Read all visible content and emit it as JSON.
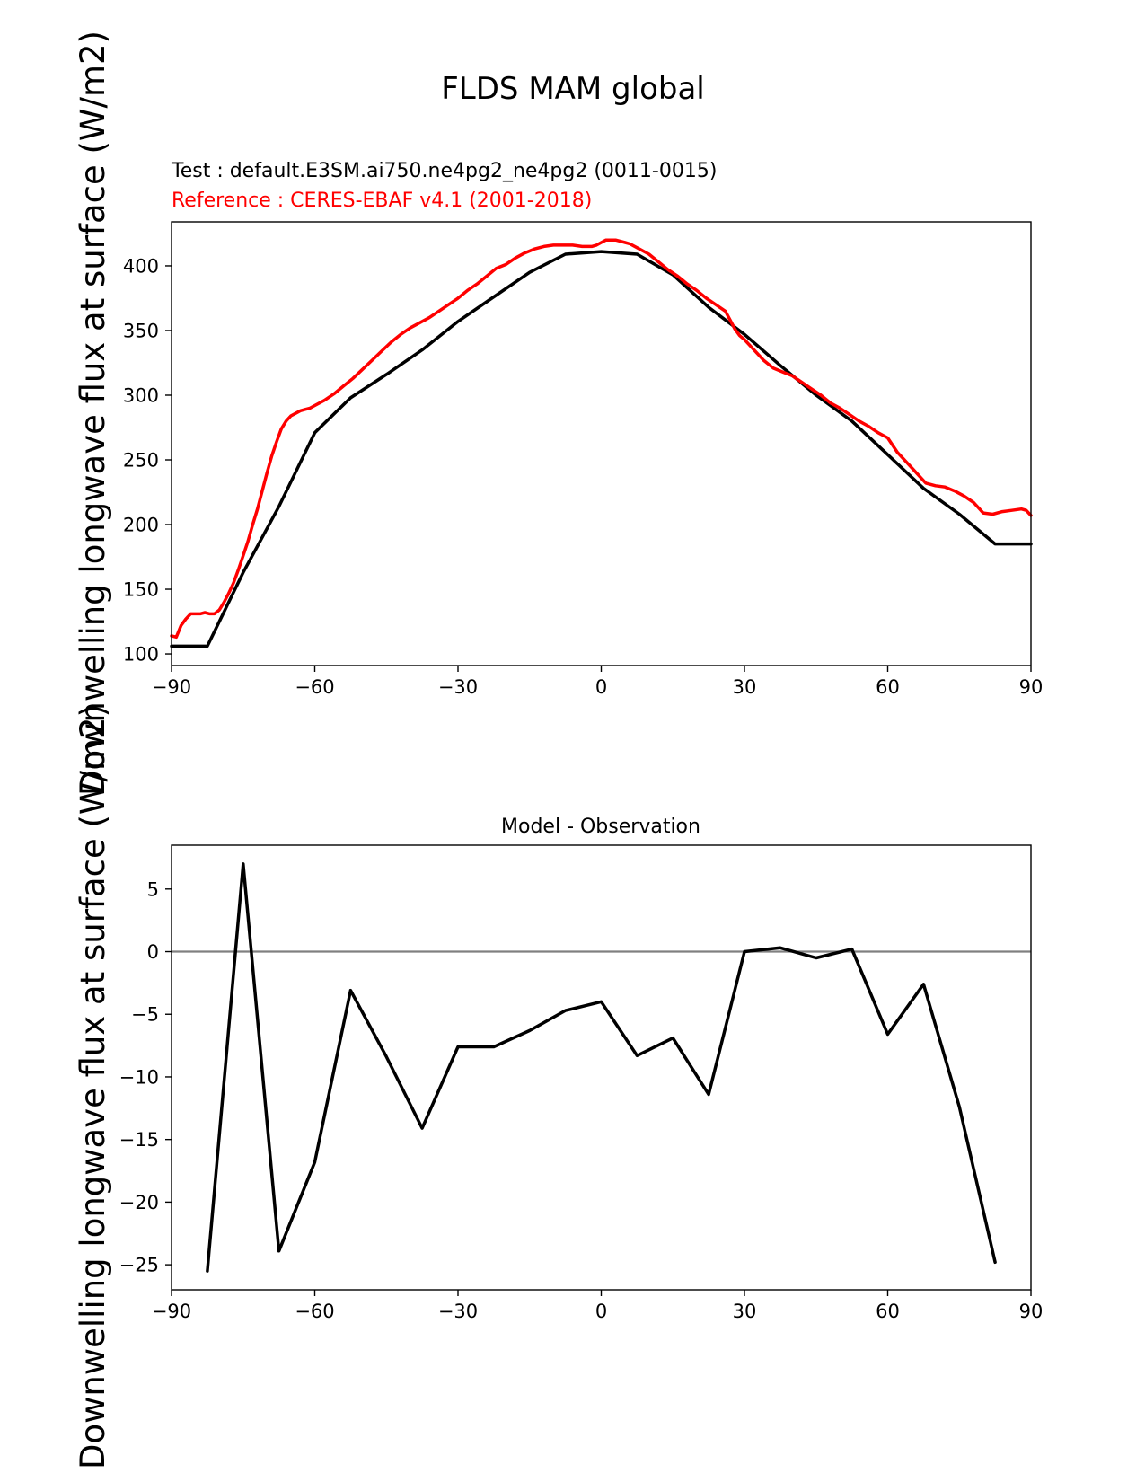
{
  "figure": {
    "title": "FLDS MAM global",
    "ylabel_top": "Downwelling longwave flux at surface (W/m2)",
    "ylabel_bottom": "Downwelling longwave flux at surface (W/m2)",
    "test_label": "Test : default.E3SM.ai750.ne4pg2_ne4pg2 (0011-0015)",
    "reference_label": "Reference : CERES-EBAF v4.1 (2001-2018)",
    "colors": {
      "test": "#000000",
      "reference": "#ff0000",
      "zero_line": "#808080"
    }
  },
  "chart_data": [
    {
      "type": "line",
      "xlim": [
        -90,
        90
      ],
      "ylim": [
        91,
        434
      ],
      "xticks": [
        -90,
        -60,
        -30,
        0,
        30,
        60,
        90
      ],
      "yticks": [
        100,
        150,
        200,
        250,
        300,
        350,
        400
      ],
      "series": [
        {
          "role": "test",
          "color": "#000000",
          "x": [
            -90,
            -82.5,
            -75,
            -67.5,
            -60,
            -52.5,
            -45,
            -37.5,
            -30,
            -22.5,
            -15,
            -7.5,
            0,
            7.5,
            15,
            22.5,
            30,
            37.5,
            45,
            52.5,
            60,
            67.5,
            75,
            82.5,
            90
          ],
          "y": [
            106,
            106,
            163,
            214,
            271,
            298,
            316,
            335,
            357,
            376,
            395,
            409,
            411,
            409,
            393,
            368,
            347,
            323,
            300,
            280,
            254,
            228,
            208,
            185,
            185
          ]
        },
        {
          "role": "reference",
          "color": "#ff0000",
          "x": [
            -90,
            -89,
            -88,
            -87,
            -86,
            -85,
            -84,
            -83,
            -82,
            -81,
            -80,
            -79,
            -78,
            -77,
            -76,
            -75,
            -74,
            -73,
            -72,
            -71,
            -70,
            -69,
            -68,
            -67,
            -66,
            -65,
            -64,
            -63,
            -62,
            -61,
            -60,
            -58,
            -56,
            -54,
            -52,
            -50,
            -48,
            -46,
            -44,
            -42,
            -40,
            -38,
            -36,
            -34,
            -32,
            -30,
            -28,
            -26,
            -24,
            -22,
            -20,
            -18,
            -16,
            -14,
            -12,
            -10,
            -8,
            -6,
            -4,
            -2,
            -1,
            0,
            1,
            2,
            3,
            4,
            5,
            6,
            8,
            10,
            12,
            14,
            16,
            18,
            20,
            22,
            24,
            26,
            27,
            28,
            29,
            30,
            32,
            34,
            36,
            38,
            40,
            42,
            44,
            46,
            48,
            50,
            52,
            54,
            56,
            58,
            60,
            62,
            64,
            66,
            68,
            70,
            72,
            74,
            76,
            78,
            80,
            82,
            84,
            86,
            88,
            89,
            90
          ],
          "y": [
            114,
            113,
            122,
            127,
            131,
            131,
            131,
            132,
            131,
            131,
            134,
            140,
            147,
            155,
            165,
            176,
            187,
            200,
            212,
            226,
            240,
            253,
            264,
            274,
            280,
            284,
            286,
            288,
            289,
            290,
            292,
            296,
            301,
            307,
            313,
            320,
            327,
            334,
            341,
            347,
            352,
            356,
            360,
            365,
            370,
            375,
            381,
            386,
            392,
            398,
            401,
            406,
            410,
            413,
            415,
            416,
            416,
            416,
            415,
            415,
            416,
            418,
            420,
            420,
            420,
            419,
            418,
            417,
            413,
            409,
            403,
            397,
            392,
            386,
            381,
            375,
            370,
            365,
            358,
            351,
            346,
            343,
            335,
            327,
            321,
            318,
            315,
            310,
            305,
            300,
            294,
            290,
            285,
            280,
            276,
            271,
            267,
            256,
            248,
            240,
            232,
            230,
            229,
            226,
            222,
            217,
            209,
            208,
            210,
            211,
            212,
            211,
            207
          ]
        }
      ]
    },
    {
      "type": "line",
      "title": "Model - Observation",
      "xlim": [
        -90,
        90
      ],
      "ylim": [
        -27,
        8.5
      ],
      "xticks": [
        -90,
        -60,
        -30,
        0,
        30,
        60,
        90
      ],
      "yticks": [
        5,
        0,
        -5,
        -10,
        -15,
        -20,
        -25
      ],
      "zero_line": true,
      "series": [
        {
          "role": "difference",
          "color": "#000000",
          "x": [
            -82.5,
            -75,
            -67.5,
            -60,
            -52.5,
            -45,
            -37.5,
            -30,
            -22.5,
            -15,
            -7.5,
            0,
            7.5,
            15,
            22.5,
            30,
            37.5,
            45,
            52.5,
            60,
            67.5,
            75,
            82.5
          ],
          "y": [
            -25.5,
            7,
            -23.9,
            -16.8,
            -3.1,
            -8.4,
            -14.1,
            -7.6,
            -7.6,
            -6.3,
            -4.7,
            -4,
            -8.3,
            -6.9,
            -11.4,
            0,
            0.3,
            -0.5,
            0.2,
            -6.6,
            -2.6,
            -12.4,
            -24.8
          ]
        }
      ]
    }
  ]
}
